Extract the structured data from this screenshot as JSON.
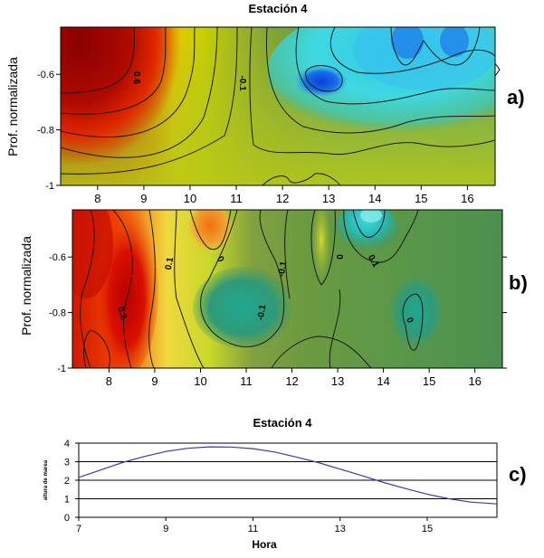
{
  "chart_data": [
    {
      "type": "heatmap",
      "panel_label": "a)",
      "title": "Estación 4",
      "ylabel": "Prof. normalizada",
      "xlabel": "",
      "xlim": [
        7.2,
        16.6
      ],
      "ylim": [
        -1,
        -0.43
      ],
      "x_ticks": [
        8,
        9,
        10,
        11,
        12,
        13,
        14,
        15,
        16
      ],
      "y_ticks": [
        -0.6,
        -0.8,
        -1
      ],
      "contour_labels": [
        "0.6",
        "-0.1"
      ],
      "colormap": [
        "#8b0000",
        "#e02200",
        "#f0a000",
        "#e0e000",
        "#94b020",
        "#6a9a38",
        "#20c8c8",
        "#60f0f0",
        "#1060e0"
      ]
    },
    {
      "type": "heatmap",
      "panel_label": "b)",
      "title": "",
      "ylabel": "Prof. normalizada",
      "xlabel": "",
      "xlim": [
        7.2,
        16.6
      ],
      "ylim": [
        -1,
        -0.43
      ],
      "x_ticks": [
        8,
        9,
        10,
        11,
        12,
        13,
        14,
        15,
        16
      ],
      "y_ticks": [
        -0.6,
        -0.8,
        -1
      ],
      "contour_labels": [
        "0.1",
        "0",
        "-0.1",
        "0",
        "0.2",
        "-0.1",
        "0.1",
        "0"
      ],
      "colormap": [
        "#c80000",
        "#ff5000",
        "#f0c030",
        "#d8e020",
        "#6a9a40",
        "#2a9a78",
        "#20b8a8",
        "#40d8d0"
      ]
    },
    {
      "type": "line",
      "panel_label": "c)",
      "title": "Estación 4",
      "xlabel": "Hora",
      "ylabel": "altura de marea",
      "xlim": [
        7,
        16.6
      ],
      "ylim": [
        0,
        4
      ],
      "x_ticks": [
        7,
        9,
        11,
        13,
        15
      ],
      "y_ticks": [
        0,
        1,
        2,
        3,
        4
      ],
      "grid": "horizontal",
      "series": [
        {
          "color": "#3a3aa8",
          "x": [
            7.0,
            7.5,
            8.0,
            8.5,
            9.0,
            9.5,
            10.0,
            10.5,
            11.0,
            11.5,
            12.0,
            12.5,
            13.0,
            13.5,
            14.0,
            14.5,
            15.0,
            15.5,
            16.0,
            16.6
          ],
          "y": [
            2.15,
            2.55,
            2.95,
            3.28,
            3.55,
            3.72,
            3.8,
            3.79,
            3.7,
            3.52,
            3.25,
            2.95,
            2.6,
            2.25,
            1.88,
            1.55,
            1.25,
            1.0,
            0.82,
            0.72
          ]
        }
      ]
    }
  ]
}
